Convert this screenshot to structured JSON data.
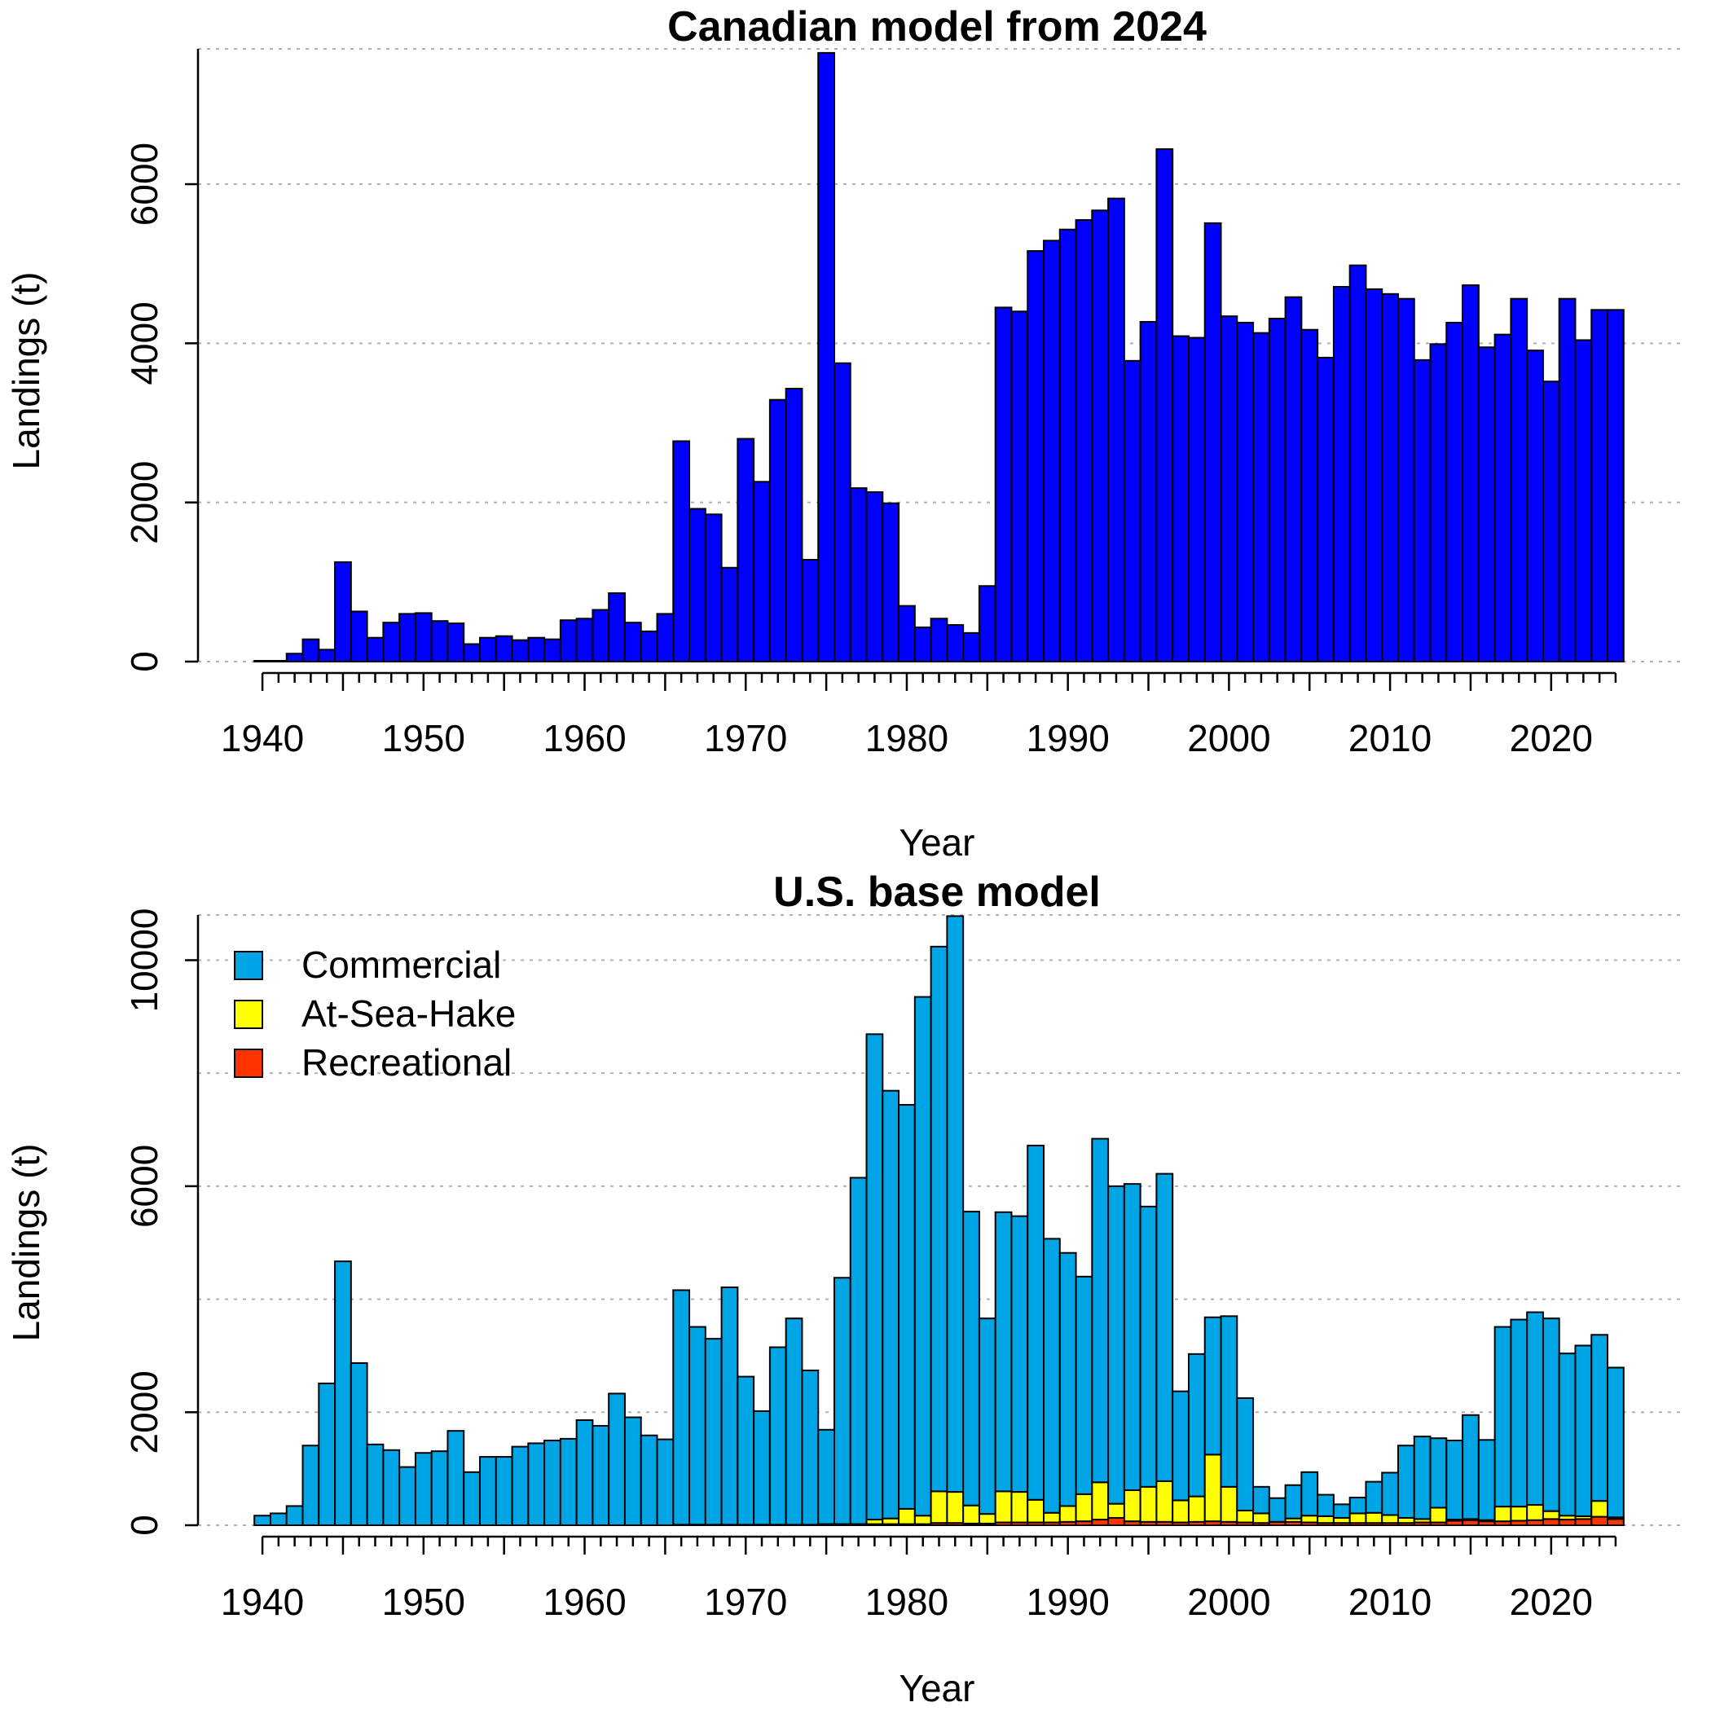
{
  "chart_data": [
    {
      "type": "bar",
      "title": "Canadian model from 2024",
      "xlabel": "Year",
      "ylabel": "Landings (t)",
      "xlim": [
        1936,
        2028
      ],
      "ylim": [
        0,
        7700
      ],
      "x_ticks": [
        1940,
        1950,
        1960,
        1970,
        1980,
        1990,
        2000,
        2010,
        2020
      ],
      "y_ticks": [
        0,
        2000,
        4000,
        6000
      ],
      "grid": true,
      "colors": {
        "bar": "#0000FF"
      },
      "years": [
        1940,
        1941,
        1942,
        1943,
        1944,
        1945,
        1946,
        1947,
        1948,
        1949,
        1950,
        1951,
        1952,
        1953,
        1954,
        1955,
        1956,
        1957,
        1958,
        1959,
        1960,
        1961,
        1962,
        1963,
        1964,
        1965,
        1966,
        1967,
        1968,
        1969,
        1970,
        1971,
        1972,
        1973,
        1974,
        1975,
        1976,
        1977,
        1978,
        1979,
        1980,
        1981,
        1982,
        1983,
        1984,
        1985,
        1986,
        1987,
        1988,
        1989,
        1990,
        1991,
        1992,
        1993,
        1994,
        1995,
        1996,
        1997,
        1998,
        1999,
        2000,
        2001,
        2002,
        2003,
        2004,
        2005,
        2006,
        2007,
        2008,
        2009,
        2010,
        2011,
        2012,
        2013,
        2014,
        2015,
        2016,
        2017,
        2018,
        2019,
        2020,
        2021,
        2022,
        2023,
        2024
      ],
      "values": [
        10,
        10,
        100,
        280,
        150,
        1250,
        630,
        300,
        490,
        600,
        610,
        510,
        480,
        220,
        300,
        320,
        270,
        300,
        280,
        520,
        540,
        650,
        860,
        490,
        380,
        600,
        2770,
        1920,
        1850,
        1180,
        2800,
        2260,
        3290,
        3430,
        1280,
        7650,
        3750,
        2180,
        2130,
        1990,
        700,
        430,
        540,
        460,
        360,
        950,
        4450,
        4400,
        5160,
        5290,
        5430,
        5550,
        5670,
        5820,
        3780,
        4270,
        6440,
        4090,
        4070,
        5510,
        4340,
        4260,
        4130,
        4310,
        4580,
        4170,
        3820,
        4710,
        4980,
        4680,
        4620,
        4560,
        3790,
        3990,
        4260,
        4730,
        3950,
        4110,
        4560,
        3910,
        3520,
        4560,
        4040,
        4420,
        4420
      ]
    },
    {
      "type": "bar",
      "stacked": true,
      "title": "U.S. base model",
      "xlabel": "Year",
      "ylabel": "Landings (t)",
      "xlim": [
        1936,
        2028
      ],
      "ylim": [
        0,
        10800
      ],
      "x_ticks": [
        1940,
        1950,
        1960,
        1970,
        1980,
        1990,
        2000,
        2010,
        2020
      ],
      "y_ticks": [
        0,
        2000,
        6000,
        10000
      ],
      "y_gridlines": [
        0,
        2000,
        4000,
        6000,
        8000,
        10000
      ],
      "grid": true,
      "legend_position": "top-left",
      "years": [
        1940,
        1941,
        1942,
        1943,
        1944,
        1945,
        1946,
        1947,
        1948,
        1949,
        1950,
        1951,
        1952,
        1953,
        1954,
        1955,
        1956,
        1957,
        1958,
        1959,
        1960,
        1961,
        1962,
        1963,
        1964,
        1965,
        1966,
        1967,
        1968,
        1969,
        1970,
        1971,
        1972,
        1973,
        1974,
        1975,
        1976,
        1977,
        1978,
        1979,
        1980,
        1981,
        1982,
        1983,
        1984,
        1985,
        1986,
        1987,
        1988,
        1989,
        1990,
        1991,
        1992,
        1993,
        1994,
        1995,
        1996,
        1997,
        1998,
        1999,
        2000,
        2001,
        2002,
        2003,
        2004,
        2005,
        2006,
        2007,
        2008,
        2009,
        2010,
        2011,
        2012,
        2013,
        2014,
        2015,
        2016,
        2017,
        2018,
        2019,
        2020,
        2021,
        2022,
        2023,
        2024
      ],
      "series": [
        {
          "name": "Recreational",
          "color": "#FF3300",
          "values": [
            0,
            0,
            0,
            0,
            0,
            0,
            0,
            0,
            0,
            0,
            0,
            0,
            0,
            0,
            0,
            0,
            0,
            0,
            0,
            0,
            0,
            0,
            0,
            0,
            0,
            0,
            10,
            10,
            10,
            10,
            10,
            10,
            10,
            10,
            10,
            20,
            20,
            20,
            20,
            20,
            20,
            20,
            40,
            40,
            30,
            30,
            50,
            50,
            50,
            50,
            60,
            70,
            100,
            130,
            70,
            60,
            60,
            50,
            60,
            70,
            60,
            50,
            40,
            60,
            60,
            50,
            40,
            40,
            40,
            40,
            40,
            40,
            50,
            50,
            80,
            90,
            70,
            70,
            80,
            90,
            110,
            100,
            110,
            150,
            110
          ]
        },
        {
          "name": "At-Sea-Hake",
          "color": "#FFFF00",
          "values": [
            0,
            0,
            0,
            0,
            0,
            0,
            0,
            0,
            0,
            0,
            0,
            0,
            0,
            0,
            0,
            0,
            0,
            0,
            0,
            0,
            0,
            0,
            0,
            0,
            0,
            0,
            0,
            0,
            0,
            0,
            0,
            0,
            0,
            0,
            0,
            0,
            0,
            0,
            80,
            100,
            270,
            150,
            560,
            550,
            320,
            170,
            550,
            540,
            400,
            170,
            280,
            480,
            660,
            250,
            550,
            620,
            720,
            390,
            450,
            1180,
            620,
            210,
            170,
            0,
            60,
            120,
            120,
            90,
            170,
            180,
            140,
            90,
            60,
            260,
            20,
            20,
            20,
            260,
            250,
            270,
            140,
            70,
            50,
            280,
            30
          ]
        },
        {
          "name": "Commercial",
          "color": "#00A5E5",
          "values": [
            170,
            210,
            340,
            1410,
            2510,
            4670,
            2870,
            1430,
            1330,
            1030,
            1280,
            1310,
            1670,
            940,
            1210,
            1210,
            1390,
            1450,
            1500,
            1530,
            1860,
            1760,
            2330,
            1910,
            1590,
            1520,
            4150,
            3500,
            3290,
            4200,
            2620,
            2010,
            3140,
            3650,
            2730,
            1670,
            4360,
            6130,
            8590,
            7570,
            7150,
            9180,
            9640,
            10190,
            5200,
            3460,
            4940,
            4880,
            6270,
            4850,
            4480,
            3850,
            6080,
            5620,
            5420,
            4960,
            5440,
            1930,
            2520,
            2430,
            3020,
            1990,
            470,
            420,
            590,
            770,
            380,
            240,
            280,
            550,
            750,
            1280,
            1460,
            1230,
            1400,
            1840,
            1420,
            3180,
            3310,
            3410,
            3410,
            2870,
            3020,
            2940,
            2650
          ]
        }
      ]
    }
  ]
}
